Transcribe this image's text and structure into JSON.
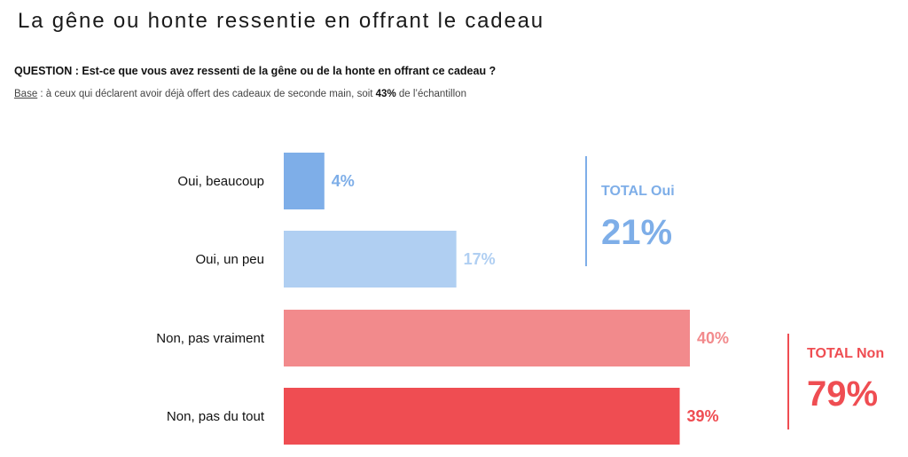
{
  "header": {
    "title": "La gêne ou honte ressentie en offrant le cadeau",
    "question": "QUESTION : Est-ce que vous avez ressenti de la gêne ou de la honte en offrant ce cadeau ?",
    "base_label": "Base",
    "base_text_1": " : à ceux qui déclarent avoir déjà offert des cadeaux de seconde main, soit ",
    "base_pct": "43%",
    "base_text_2": " de l’échantillon"
  },
  "chart_data": {
    "type": "bar",
    "orientation": "horizontal",
    "categories": [
      "Oui, beaucoup",
      "Oui, un peu",
      "Non, pas vraiment",
      "Non, pas du tout"
    ],
    "values": [
      4,
      17,
      40,
      39
    ],
    "value_labels": [
      "4%",
      "17%",
      "40%",
      "39%"
    ],
    "colors": [
      "#7eaee8",
      "#b0cff2",
      "#f28a8c",
      "#ef4d52"
    ],
    "xlim": [
      0,
      40
    ],
    "grid": false,
    "totals": [
      {
        "label": "TOTAL Oui",
        "value": "21%",
        "color": "#7eaee8"
      },
      {
        "label": "TOTAL Non",
        "value": "79%",
        "color": "#ef4d52"
      }
    ]
  }
}
